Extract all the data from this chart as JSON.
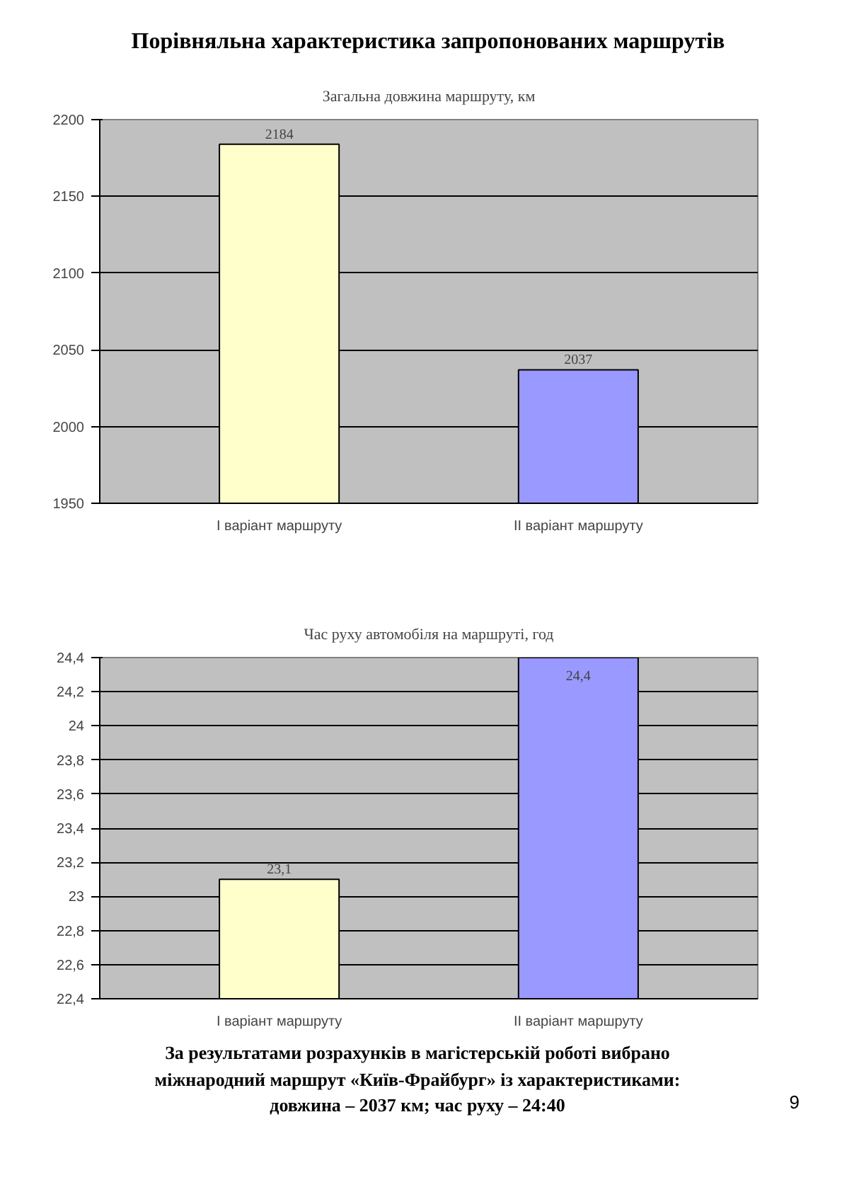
{
  "chart_data": [
    {
      "type": "bar",
      "title": "Порівняльна характеристика запропонованих маршрутів",
      "subtitle": "Загальна довжина маршруту, км",
      "categories": [
        "І варіант маршруту",
        "ІІ варіант маршруту"
      ],
      "values": [
        2184,
        2037
      ],
      "colors": [
        "#ffffcc",
        "#9999ff"
      ],
      "value_labels": [
        "2184",
        "2037"
      ],
      "ylim": [
        1950,
        2200
      ],
      "yticks": [
        1950,
        2000,
        2050,
        2100,
        2150,
        2200
      ],
      "grid": "y"
    },
    {
      "type": "bar",
      "title": "Час руху автомобіля на маршруті, год",
      "categories": [
        "І варіант маршруту",
        "ІІ варіант маршруту"
      ],
      "values": [
        23.1,
        24.4
      ],
      "colors": [
        "#ffffcc",
        "#9999ff"
      ],
      "value_labels": [
        "23,1",
        "24,4"
      ],
      "ylim": [
        22.4,
        24.4
      ],
      "yticks": [
        {
          "value": 22.4,
          "label": "22,4"
        },
        {
          "value": 22.6,
          "label": "22,6"
        },
        {
          "value": 22.8,
          "label": "22,8"
        },
        {
          "value": 23,
          "label": "23"
        },
        {
          "value": 23.2,
          "label": "23,2"
        },
        {
          "value": 23.4,
          "label": "23,4"
        },
        {
          "value": 23.6,
          "label": "23,6"
        },
        {
          "value": 23.8,
          "label": "23,8"
        },
        {
          "value": 24,
          "label": "24"
        },
        {
          "value": 24.2,
          "label": "24,2"
        },
        {
          "value": 24.4,
          "label": "24,4"
        }
      ],
      "grid": "y",
      "annotations": [
        "За результатами розрахунків в магістерській роботі вибрано міжнародний маршрут «Київ-Фрайбург» із характеристиками: довжина – 2037 км; час руху – 24:40",
        "9"
      ]
    }
  ]
}
